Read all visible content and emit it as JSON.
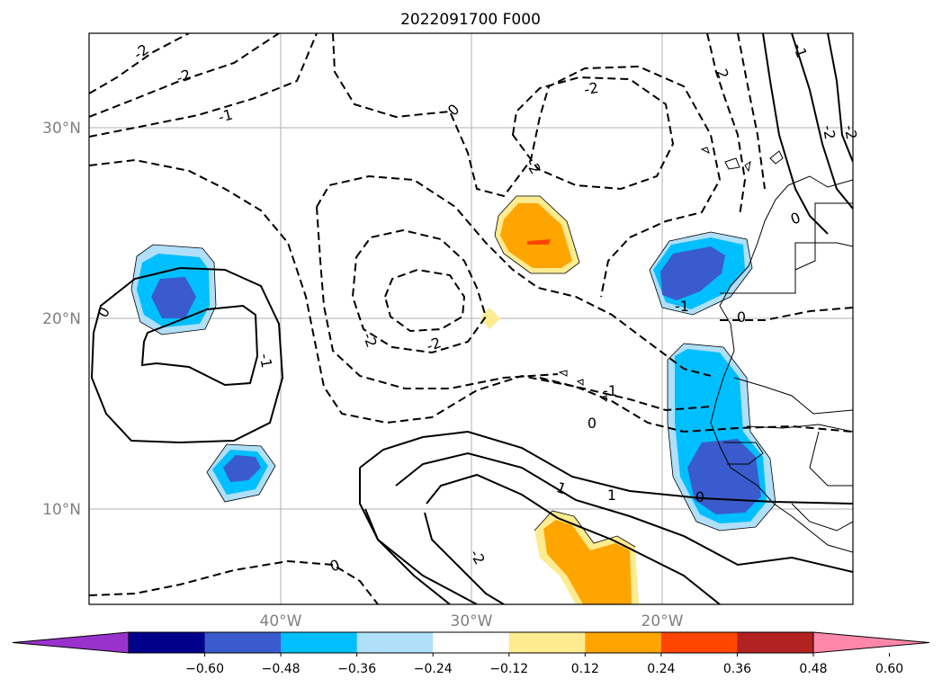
{
  "title": "2022091700 F000",
  "map": {
    "extent": {
      "lon_min": -50,
      "lon_max": -10,
      "lat_min": 5,
      "lat_max": 35
    },
    "lat_ticks": [
      {
        "value": 30,
        "label": "30°N"
      },
      {
        "value": 20,
        "label": "20°N"
      },
      {
        "value": 10,
        "label": "10°N"
      }
    ],
    "lon_ticks": [
      {
        "value": -40,
        "label": "40°W"
      },
      {
        "value": -30,
        "label": "30°W"
      },
      {
        "value": -20,
        "label": "20°W"
      }
    ],
    "gridline_color": "#b0b0b0",
    "label_color": "#808080",
    "contour_labels": [
      "-2",
      "-2",
      "-1",
      "0",
      "-2",
      "2",
      "-2",
      "-2",
      "-2",
      "0",
      "-1",
      "0",
      "0",
      "-1",
      "-1",
      "0",
      "-1",
      "1",
      "-2",
      "1",
      "-2",
      "-2",
      "0",
      "0"
    ]
  },
  "colorbar": {
    "colors": [
      "#9932cc",
      "#00008b",
      "#3a5bcd",
      "#00bfff",
      "#afdff9",
      "#ffffff",
      "#fdeb90",
      "#ffa500",
      "#ff4500",
      "#b22222",
      "#ff88aa"
    ],
    "ticks": [
      "−0.60",
      "−0.48",
      "−0.36",
      "−0.24",
      "−0.12",
      "0.12",
      "0.24",
      "0.36",
      "0.48",
      "0.60"
    ],
    "extend": "both"
  }
}
